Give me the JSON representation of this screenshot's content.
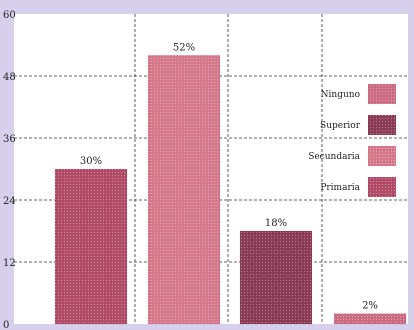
{
  "chart_data": {
    "type": "bar",
    "title": "",
    "xlabel": "",
    "ylabel": "",
    "ylim": [
      0,
      60
    ],
    "yticks": [
      0,
      12,
      24,
      36,
      48,
      60
    ],
    "grid": true,
    "legend_position": "right",
    "bars": [
      {
        "series": "Primaria",
        "value": 30,
        "label": "30%",
        "color": "#b04a66"
      },
      {
        "series": "Secundaria",
        "value": 52,
        "label": "52%",
        "color": "#d4788a"
      },
      {
        "series": "Superior",
        "value": 18,
        "label": "18%",
        "color": "#8a3a54"
      },
      {
        "series": "Ninguno",
        "value": 2,
        "label": "2%",
        "color": "#cc6a82"
      }
    ],
    "legend": [
      {
        "name": "Ninguno",
        "color": "#cc6a82"
      },
      {
        "name": "Superior",
        "color": "#8a3a54"
      },
      {
        "name": "Secundaria",
        "color": "#d4788a"
      },
      {
        "name": "Primaria",
        "color": "#b04a66"
      }
    ]
  }
}
